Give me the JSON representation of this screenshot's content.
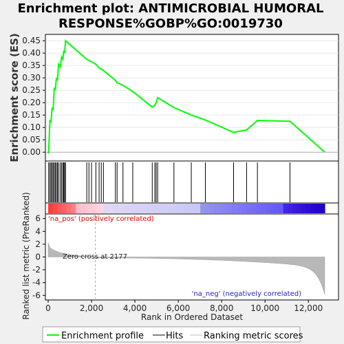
{
  "chart_data": {
    "type": "line",
    "title_line1": "Enrichment plot: ANTIMICROBIAL HUMORAL",
    "title_line2": "RESPONSE%GOBP%GO:0019730",
    "es_ylabel": "Enrichment score (ES)",
    "rank_ylabel": "Ranked list metric (PreRanked)",
    "xlabel": "Rank in Ordered Dataset",
    "x_range": [
      0,
      12754
    ],
    "es_ylim": [
      -0.03,
      0.47
    ],
    "es_ticks": [
      "0.00",
      "0.05",
      "0.10",
      "0.15",
      "0.20",
      "0.25",
      "0.30",
      "0.35",
      "0.40",
      "0.45"
    ],
    "metric_ylim": [
      -6.5,
      6.5
    ],
    "metric_ticks": [
      "-6",
      "-4",
      "-2",
      "0",
      "2",
      "4",
      "6"
    ],
    "x_ticks": [
      "0",
      "2,000",
      "4,000",
      "6,000",
      "8,000",
      "10,000",
      "12,000"
    ],
    "es_color": "#00ff00",
    "pos_label": "'na_pos' (positively correlated)",
    "pos_color": "#ff0000",
    "neg_label": "'na_neg' (negatively correlated)",
    "neg_color": "#0000ff",
    "zero_cross_label": "Zero cross at 2177",
    "zero_cross": 2177,
    "hits": [
      20,
      80,
      130,
      180,
      230,
      280,
      330,
      380,
      430,
      480,
      560,
      620,
      680,
      720,
      760,
      800,
      1780,
      1880,
      2000,
      2200,
      2350,
      2450,
      2550,
      3100,
      3180,
      3450,
      3900,
      4800,
      4920,
      4980,
      5050,
      5800,
      6600,
      7250,
      8550,
      9150,
      9650,
      11150
    ],
    "es_points": [
      [
        0,
        0.0
      ],
      [
        20,
        -0.005
      ],
      [
        80,
        0.13
      ],
      [
        130,
        0.12
      ],
      [
        180,
        0.18
      ],
      [
        230,
        0.17
      ],
      [
        280,
        0.26
      ],
      [
        330,
        0.25
      ],
      [
        380,
        0.3
      ],
      [
        430,
        0.29
      ],
      [
        480,
        0.355
      ],
      [
        560,
        0.345
      ],
      [
        620,
        0.385
      ],
      [
        680,
        0.375
      ],
      [
        720,
        0.41
      ],
      [
        760,
        0.4
      ],
      [
        800,
        0.45
      ],
      [
        1780,
        0.375
      ],
      [
        1880,
        0.37
      ],
      [
        2000,
        0.365
      ],
      [
        2200,
        0.355
      ],
      [
        2350,
        0.34
      ],
      [
        2450,
        0.335
      ],
      [
        2550,
        0.33
      ],
      [
        3100,
        0.29
      ],
      [
        3180,
        0.28
      ],
      [
        3450,
        0.27
      ],
      [
        3900,
        0.245
      ],
      [
        4800,
        0.182
      ],
      [
        4920,
        0.19
      ],
      [
        4980,
        0.2
      ],
      [
        5050,
        0.22
      ],
      [
        5800,
        0.18
      ],
      [
        6600,
        0.15
      ],
      [
        7250,
        0.13
      ],
      [
        8550,
        0.08
      ],
      [
        9150,
        0.09
      ],
      [
        9650,
        0.128
      ],
      [
        11150,
        0.125
      ],
      [
        12754,
        0.0
      ]
    ],
    "legend": [
      "Enrichment profile",
      "Hits",
      "Ranking metric scores"
    ]
  }
}
